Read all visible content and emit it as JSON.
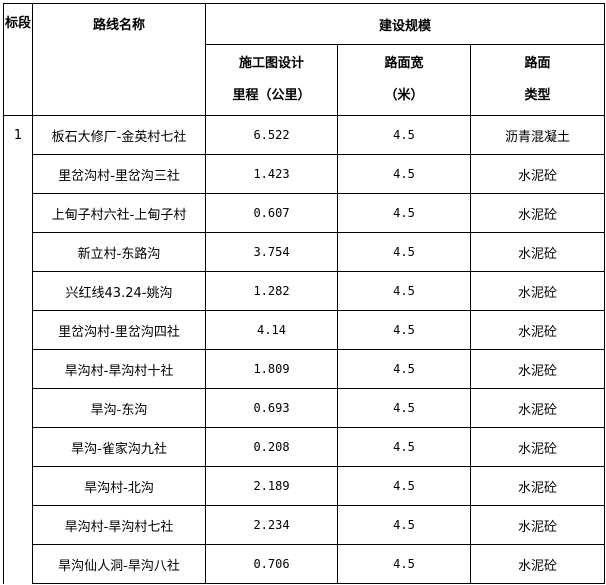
{
  "header": {
    "section": "标段",
    "route_name": "路线名称",
    "scale": "建设规模",
    "length_line1": "施工图设计",
    "length_line2": "里程（公里）",
    "width_line1": "路面宽",
    "width_line2": "（米）",
    "type_line1": "路面",
    "type_line2": "类型"
  },
  "section_value": "1",
  "rows": [
    {
      "name": "板石大修厂-金英村七社",
      "length": "6.522",
      "width": "4.5",
      "type": "沥青混凝土"
    },
    {
      "name": "里岔沟村-里岔沟三社",
      "length": "1.423",
      "width": "4.5",
      "type": "水泥砼"
    },
    {
      "name": "上甸子村六社-上甸子村",
      "length": "0.607",
      "width": "4.5",
      "type": "水泥砼"
    },
    {
      "name": "新立村-东路沟",
      "length": "3.754",
      "width": "4.5",
      "type": "水泥砼"
    },
    {
      "name": "兴红线43.24-姚沟",
      "length": "1.282",
      "width": "4.5",
      "type": "水泥砼"
    },
    {
      "name": "里岔沟村-里岔沟四社",
      "length": "4.14",
      "width": "4.5",
      "type": "水泥砼"
    },
    {
      "name": "旱沟村-旱沟村十社",
      "length": "1.809",
      "width": "4.5",
      "type": "水泥砼"
    },
    {
      "name": "旱沟-东沟",
      "length": "0.693",
      "width": "4.5",
      "type": "水泥砼"
    },
    {
      "name": "旱沟-雀家沟九社",
      "length": "0.208",
      "width": "4.5",
      "type": "水泥砼"
    },
    {
      "name": "旱沟村-北沟",
      "length": "2.189",
      "width": "4.5",
      "type": "水泥砼"
    },
    {
      "name": "旱沟村-旱沟村七社",
      "length": "2.234",
      "width": "4.5",
      "type": "水泥砼"
    },
    {
      "name": "旱沟仙人洞-旱沟八社",
      "length": "0.706",
      "width": "4.5",
      "type": "水泥砼"
    }
  ]
}
